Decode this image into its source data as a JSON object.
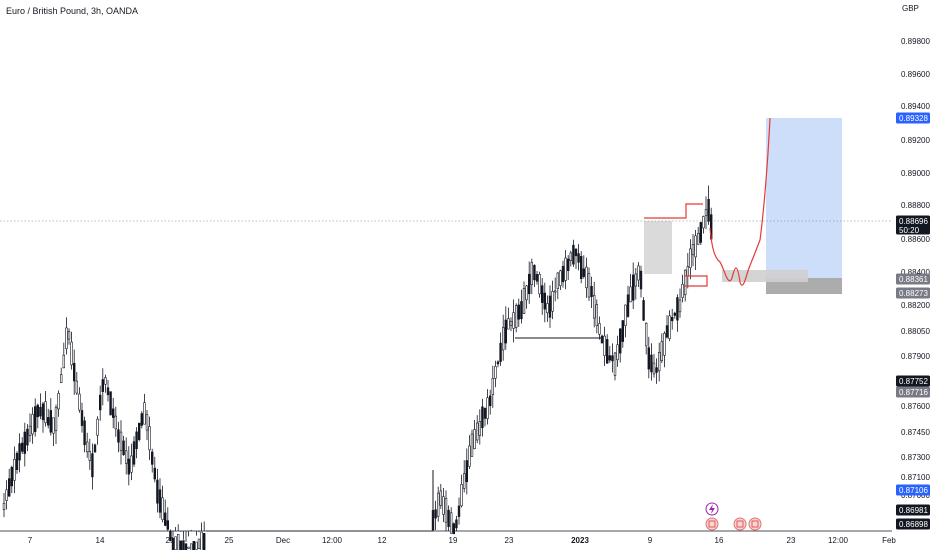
{
  "chart_data": {
    "type": "candlestick",
    "title": "Euro / British Pound, 3h, OANDA",
    "currency": "GBP",
    "y_range": [
      0.8687,
      0.8997
    ],
    "y_ticks": [
      "0.89800",
      "0.89600",
      "0.89400",
      "0.89200",
      "0.89000",
      "0.88800",
      "0.88600",
      "0.88400",
      "0.88200",
      "0.88050",
      "0.87900",
      "0.87600",
      "0.87450",
      "0.87300",
      "0.87100",
      "0.87000"
    ],
    "x_ticks": [
      {
        "label": "7",
        "bold": false
      },
      {
        "label": "14",
        "bold": false
      },
      {
        "label": "21",
        "bold": false
      },
      {
        "label": "25",
        "bold": false
      },
      {
        "label": "Dec",
        "bold": false
      },
      {
        "label": "12:00",
        "bold": false
      },
      {
        "label": "12",
        "bold": false
      },
      {
        "label": "19",
        "bold": false
      },
      {
        "label": "23",
        "bold": false
      },
      {
        "label": "2023",
        "bold": true
      },
      {
        "label": "9",
        "bold": false
      },
      {
        "label": "16",
        "bold": false
      },
      {
        "label": "23",
        "bold": false
      },
      {
        "label": "12:00",
        "bold": false
      },
      {
        "label": "Feb",
        "bold": false
      }
    ],
    "price_tags": [
      {
        "label": "0.89328",
        "value": 0.89328,
        "color": "#2962ff"
      },
      {
        "label": "0.88696",
        "value": 0.88696,
        "color": "#131722",
        "sub": "50:20"
      },
      {
        "label": "0.88361",
        "value": 0.88361,
        "color": "#787b86"
      },
      {
        "label": "0.88273",
        "value": 0.88273,
        "color": "#787b86"
      },
      {
        "label": "0.87752",
        "value": 0.87752,
        "color": "#131722"
      },
      {
        "label": "0.87716",
        "value": 0.87716,
        "color": "#787b86"
      },
      {
        "label": "0.87106",
        "value": 0.87106,
        "color": "#2962ff"
      },
      {
        "label": "0.86981",
        "value": 0.86981,
        "color": "#131722"
      },
      {
        "label": "0.86898",
        "value": 0.86898,
        "color": "#131722"
      }
    ],
    "last_price": 0.88696,
    "countdown": "50:20",
    "target_price": 0.89328,
    "entry_zone": [
      0.88273,
      0.88361
    ],
    "colors": {
      "candle": "#131722",
      "projection": "#e53935",
      "target_box": "#bbd3f7",
      "stop_box": "#9e9e9e",
      "support_box": "#d6d6d6",
      "accent": "#2962ff"
    }
  },
  "icons": [
    "lightning-icon",
    "calendar-event-icon"
  ]
}
